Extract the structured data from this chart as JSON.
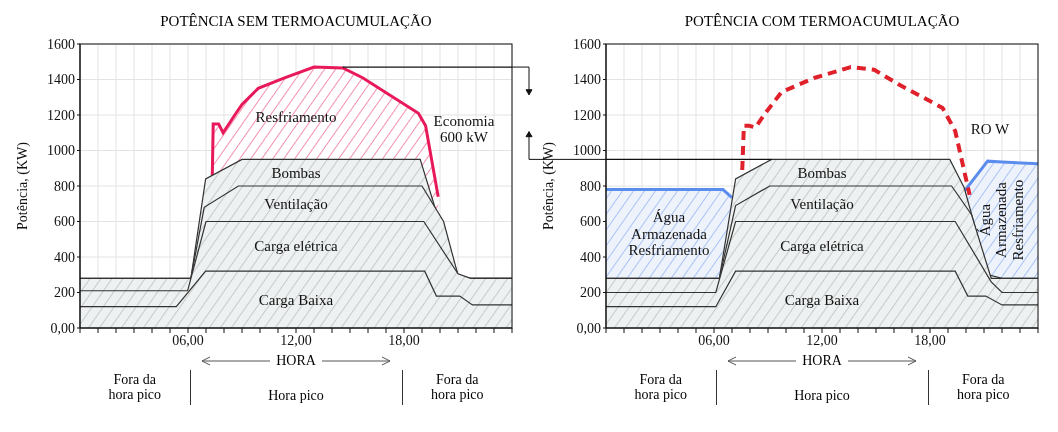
{
  "chart_data": [
    {
      "type": "area",
      "title": "POTÊNCIA SEM TERMOACUMULAÇÃO",
      "xlabel": "HORA",
      "ylabel": "Potência, (KW)",
      "grid": true,
      "xlim": [
        0,
        24
      ],
      "ylim": [
        0,
        1600
      ],
      "xticks": [
        {
          "value": 0,
          "label": null
        },
        {
          "value": 1,
          "label": null
        },
        {
          "value": 2,
          "label": null
        },
        {
          "value": 3,
          "label": null
        },
        {
          "value": 4,
          "label": null
        },
        {
          "value": 5,
          "label": null
        },
        {
          "value": 6,
          "label": "06,00"
        },
        {
          "value": 7,
          "label": null
        },
        {
          "value": 8,
          "label": null
        },
        {
          "value": 9,
          "label": null
        },
        {
          "value": 10,
          "label": null
        },
        {
          "value": 11,
          "label": null
        },
        {
          "value": 12,
          "label": "12,00"
        },
        {
          "value": 13,
          "label": null
        },
        {
          "value": 14,
          "label": null
        },
        {
          "value": 15,
          "label": null
        },
        {
          "value": 16,
          "label": null
        },
        {
          "value": 17,
          "label": null
        },
        {
          "value": 18,
          "label": "18,00"
        },
        {
          "value": 19,
          "label": null
        },
        {
          "value": 20,
          "label": null
        },
        {
          "value": 21,
          "label": null
        },
        {
          "value": 22,
          "label": null
        },
        {
          "value": 23,
          "label": null
        },
        {
          "value": 24,
          "label": null
        }
      ],
      "yticks": [
        {
          "value": 0,
          "label": "0,00"
        },
        200,
        400,
        600,
        800,
        1000,
        1200,
        1400,
        1600
      ],
      "series": [
        {
          "name": "Resfriamento",
          "color": "#e8195a",
          "x": [
            7.35,
            7.4,
            7.7,
            7.95,
            8.6,
            9,
            9.9,
            11.4,
            13,
            14.6,
            15.7,
            18.8,
            19.2,
            19.9
          ],
          "values": [
            860,
            1150,
            1150,
            1100,
            1200,
            1260,
            1350,
            1410,
            1470,
            1465,
            1410,
            1210,
            1140,
            740
          ]
        },
        {
          "type": "line",
          "color": "#111111",
          "x": [
            14.6,
            24
          ],
          "values": [
            1470,
            1470
          ]
        },
        {
          "name": "Bombas",
          "color": "#333333",
          "x": [
            0,
            6.16,
            6.98,
            9,
            18.9,
            19.9,
            21,
            21.7,
            24
          ],
          "values": [
            280,
            280,
            840,
            950,
            950,
            620,
            300,
            280,
            280
          ]
        },
        {
          "name": "Ventilação",
          "color": "#333333",
          "x": [
            0,
            6.16,
            6.9,
            8.8,
            19,
            20.2,
            21.1,
            21.7,
            24
          ],
          "values": [
            280,
            280,
            680,
            800,
            800,
            600,
            260,
            280,
            280
          ]
        },
        {
          "name": "Carga elétrica",
          "color": "#333333",
          "x": [
            0,
            5.98,
            7,
            19.1,
            21,
            21.7,
            24
          ],
          "values": [
            210,
            210,
            600,
            600,
            305,
            280,
            280
          ]
        },
        {
          "name": "Carga Baixa",
          "color": "#333333",
          "x": [
            0,
            5.35,
            6.98,
            19.15,
            19.8,
            21.1,
            21.8,
            24
          ],
          "values": [
            120,
            120,
            320,
            320,
            180,
            180,
            130,
            130
          ]
        }
      ],
      "annotations": [
        "Economia 600 kW",
        "Fora da hora pico",
        "Hora pico",
        "Fora da hora pico"
      ]
    },
    {
      "type": "area",
      "title": "POTÊNCIA COM TERMOACUMULAÇÃO",
      "xlabel": "HORA",
      "ylabel": "Potência, (KW)",
      "grid": true,
      "xlim": [
        0,
        24
      ],
      "ylim": [
        0,
        1600
      ],
      "xticks": [
        {
          "value": 0,
          "label": null
        },
        {
          "value": 1,
          "label": null
        },
        {
          "value": 2,
          "label": null
        },
        {
          "value": 3,
          "label": null
        },
        {
          "value": 4,
          "label": null
        },
        {
          "value": 5,
          "label": null
        },
        {
          "value": 6,
          "label": "06,00"
        },
        {
          "value": 7,
          "label": null
        },
        {
          "value": 8,
          "label": null
        },
        {
          "value": 9,
          "label": null
        },
        {
          "value": 10,
          "label": null
        },
        {
          "value": 11,
          "label": null
        },
        {
          "value": 12,
          "label": "12,00"
        },
        {
          "value": 13,
          "label": null
        },
        {
          "value": 14,
          "label": null
        },
        {
          "value": 15,
          "label": null
        },
        {
          "value": 16,
          "label": null
        },
        {
          "value": 17,
          "label": null
        },
        {
          "value": 18,
          "label": "18,00"
        },
        {
          "value": 19,
          "label": null
        },
        {
          "value": 20,
          "label": null
        },
        {
          "value": 21,
          "label": null
        },
        {
          "value": 22,
          "label": null
        },
        {
          "value": 23,
          "label": null
        },
        {
          "value": 24,
          "label": null
        }
      ],
      "yticks": [
        {
          "value": 0,
          "label": "0,00"
        },
        200,
        400,
        600,
        800,
        1000,
        1200,
        1400,
        1600
      ],
      "series": [
        {
          "name": "Água Armazenada Resfriamento",
          "color": "#5b8def",
          "x": [
            0,
            6.5,
            7,
            13,
            19.9,
            21.2,
            22,
            24
          ],
          "values": [
            780,
            780,
            735,
            null,
            770,
            940,
            935,
            925
          ]
        },
        {
          "type": "line",
          "color": "#e0202a",
          "line_style": "dashed",
          "x": [
            7.57,
            7.66,
            7.93,
            8.3,
            8.85,
            9.76,
            11.6,
            13.6,
            14.9,
            16.3,
            18.7,
            19.4,
            19.8,
            20.2
          ],
          "values": [
            890,
            1140,
            1140,
            1130,
            1210,
            1330,
            1410,
            1470,
            1455,
            1370,
            1240,
            1110,
            930,
            750
          ]
        },
        {
          "type": "line",
          "color": "#111111",
          "x": [
            0,
            9.2
          ],
          "values": [
            950,
            950
          ]
        },
        {
          "name": "Bombas",
          "color": "#333333",
          "x": [
            0,
            6.3,
            7.2,
            9.2,
            19.1,
            19.9,
            21.25,
            22,
            24
          ],
          "values": [
            280,
            280,
            840,
            950,
            950,
            790,
            300,
            280,
            280
          ]
        },
        {
          "name": "Ventilação",
          "color": "#333333",
          "x": [
            0,
            6.3,
            7.2,
            9.1,
            19.2,
            20.3,
            21.4,
            24
          ],
          "values": [
            280,
            280,
            690,
            800,
            800,
            640,
            280,
            280
          ]
        },
        {
          "name": "Carga elétrica",
          "color": "#333333",
          "x": [
            0,
            6.1,
            7.2,
            19.4,
            21.4,
            22,
            24
          ],
          "values": [
            200,
            200,
            600,
            600,
            260,
            200,
            200
          ]
        },
        {
          "name": "Carga Baixa",
          "color": "#333333",
          "x": [
            0,
            6.1,
            7.2,
            19.4,
            20.1,
            21.1,
            22,
            24
          ],
          "values": [
            120,
            120,
            320,
            320,
            180,
            180,
            130,
            130
          ]
        }
      ],
      "annotations": [
        "RO W",
        "Fora da hora pico",
        "Hora pico",
        "Fora da hora pico"
      ]
    }
  ]
}
